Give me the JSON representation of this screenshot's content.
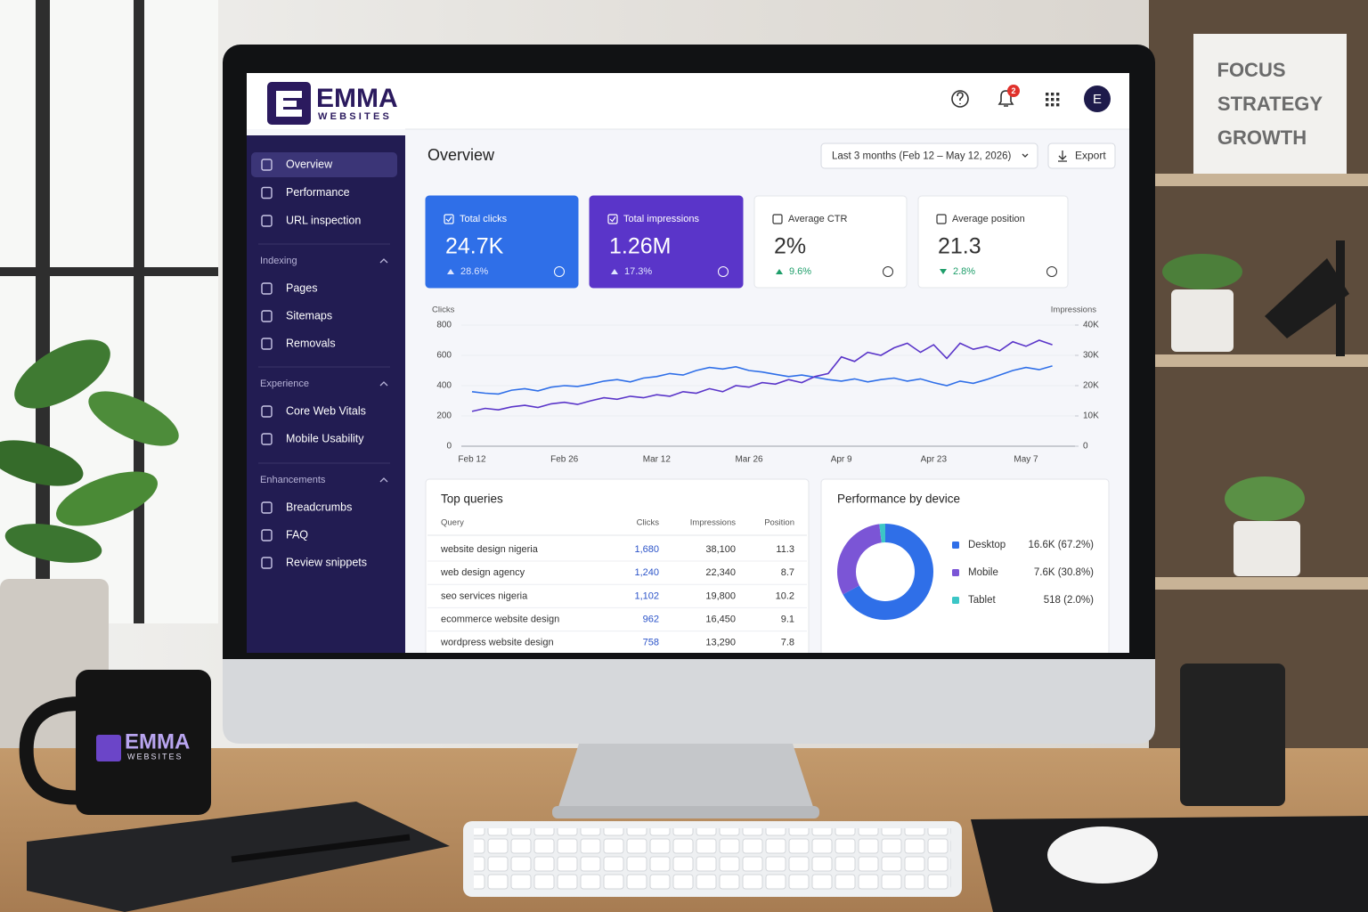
{
  "decor": {
    "poster_lines": [
      "FOCUS",
      "STRATEGY",
      "GROWTH"
    ],
    "mug_brand": "EMMA",
    "mug_sub": "WEBSITES"
  },
  "header": {
    "brand": "EMMA",
    "brand_sub": "WEBSITES",
    "notifications": "2",
    "avatar": "E"
  },
  "sidebar": {
    "main_items": [
      "Overview",
      "Performance",
      "URL inspection"
    ],
    "sections": [
      {
        "title": "Indexing",
        "items": [
          "Pages",
          "Sitemaps",
          "Removals"
        ]
      },
      {
        "title": "Experience",
        "items": [
          "Core Web Vitals",
          "Mobile Usability"
        ]
      },
      {
        "title": "Enhancements",
        "items": [
          "Breadcrumbs",
          "FAQ",
          "Review snippets"
        ]
      }
    ]
  },
  "page": {
    "title": "Overview",
    "date_range": "Last 3 months (Feb 12 – May 12, 2026)",
    "export": "Export"
  },
  "metrics": [
    {
      "label": "Total clicks",
      "value": "24.7K",
      "change": "28.6%",
      "trend": "up",
      "selected": true,
      "color": "#2f6fe8"
    },
    {
      "label": "Total impressions",
      "value": "1.26M",
      "change": "17.3%",
      "trend": "up",
      "selected": true,
      "color": "#5a35c9"
    },
    {
      "label": "Average CTR",
      "value": "2%",
      "change": "9.6%",
      "trend": "up",
      "selected": false
    },
    {
      "label": "Average position",
      "value": "21.3",
      "change": "2.8%",
      "trend": "down",
      "selected": false
    }
  ],
  "performance_chart": {
    "type": "line",
    "y_label": "Clicks",
    "y2_label": "Impressions",
    "x": [
      "Feb 12",
      "Feb 14",
      "Feb 16",
      "Feb 18",
      "Feb 20",
      "Feb 22",
      "Feb 24",
      "Feb 26",
      "Feb 28",
      "Mar 2",
      "Mar 4",
      "Mar 6",
      "Mar 8",
      "Mar 10",
      "Mar 12",
      "Mar 14",
      "Mar 16",
      "Mar 18",
      "Mar 20",
      "Mar 22",
      "Mar 24",
      "Mar 26",
      "Mar 28",
      "Mar 30",
      "Apr 1",
      "Apr 3",
      "Apr 5",
      "Apr 7",
      "Apr 9",
      "Apr 11",
      "Apr 13",
      "Apr 15",
      "Apr 17",
      "Apr 19",
      "Apr 21",
      "Apr 23",
      "Apr 25",
      "Apr 27",
      "Apr 29",
      "May 1",
      "May 3",
      "May 5",
      "May 7",
      "May 9",
      "May 11"
    ],
    "series": [
      {
        "name": "Clicks",
        "color": "#2f6fe8",
        "axis": "y",
        "values": [
          360,
          350,
          345,
          370,
          380,
          365,
          390,
          400,
          395,
          410,
          430,
          440,
          425,
          450,
          460,
          480,
          470,
          500,
          520,
          510,
          525,
          500,
          490,
          475,
          460,
          470,
          455,
          440,
          430,
          445,
          425,
          440,
          450,
          430,
          445,
          420,
          400,
          430,
          415,
          440,
          470,
          500,
          520,
          505,
          530
        ]
      },
      {
        "name": "Impressions",
        "color": "#5a35c9",
        "axis": "y2",
        "values": [
          11500,
          12500,
          12000,
          13000,
          13500,
          12800,
          14000,
          14500,
          13800,
          15000,
          16000,
          15500,
          16500,
          16000,
          17000,
          16500,
          18000,
          17500,
          19000,
          18000,
          20000,
          19500,
          21000,
          20500,
          22000,
          21000,
          23000,
          24000,
          29500,
          28000,
          31000,
          30000,
          32500,
          34000,
          31000,
          33500,
          29000,
          34000,
          32000,
          33000,
          31500,
          34500,
          33000,
          35000,
          33500
        ]
      }
    ],
    "ylim": [
      0,
      800
    ],
    "yticks": [
      0,
      200,
      400,
      600,
      800
    ],
    "y2lim": [
      0,
      40000
    ],
    "y2ticks": [
      0,
      {
        "value": 10000,
        "label": "10K"
      },
      {
        "value": 20000,
        "label": "20K"
      },
      {
        "value": 30000,
        "label": "30K"
      },
      {
        "value": 40000,
        "label": "40K"
      }
    ],
    "grid": true
  },
  "top_queries": {
    "title": "Top queries",
    "columns": [
      "Query",
      "Clicks",
      "Impressions",
      "Position"
    ],
    "rows": [
      [
        "website design nigeria",
        "1,680",
        "38,100",
        "11.3"
      ],
      [
        "web design agency",
        "1,240",
        "22,340",
        "8.7"
      ],
      [
        "seo services nigeria",
        "1,102",
        "19,800",
        "10.2"
      ],
      [
        "ecommerce website design",
        "962",
        "16,450",
        "9.1"
      ],
      [
        "wordpress website design",
        "758",
        "13,290",
        "7.8"
      ]
    ]
  },
  "device": {
    "title": "Performance by device",
    "items": [
      {
        "name": "Desktop",
        "label": "16.6K (67.2%)",
        "share": 67.2,
        "color": "#2f6fe8"
      },
      {
        "name": "Mobile",
        "label": "7.6K (30.8%)",
        "share": 30.8,
        "color": "#7b55d6"
      },
      {
        "name": "Tablet",
        "label": "518 (2.0%)",
        "share": 2.0,
        "color": "#3cc6c6"
      }
    ]
  }
}
